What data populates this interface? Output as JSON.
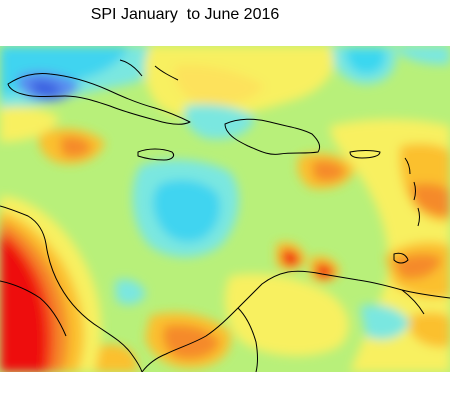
{
  "map": {
    "title": "SPI January  to June 2016"
  }
}
